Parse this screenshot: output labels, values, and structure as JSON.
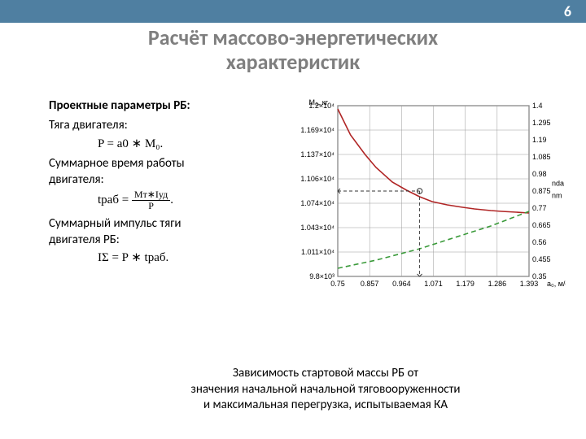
{
  "page_number": "6",
  "title_line1": "Расчёт массово-энергетических",
  "title_line2": "характеристик",
  "text": {
    "subhead": "Проектные параметры РБ:",
    "line1": "Тяга двигателя:",
    "formula1": "P = a0 ∗ M₀.",
    "line2a": "Суммарное время работы",
    "line2b": "двигателя:",
    "formula2_num": "Mт∗Iуд",
    "formula2_den": "P",
    "formula2_lhs": "tраб = ",
    "line3a": "Суммарный импульс тяги",
    "line3b": "двигателя РБ:",
    "formula3": "IΣ = P ∗ tраб."
  },
  "caption_line1": "Зависимость стартовой массы РБ от",
  "caption_line2": "значения начальной начальной тяговооруженности",
  "caption_line3": "и максимальная перегрузка, испытываемая КА",
  "chart": {
    "type": "line",
    "x_axis": {
      "label": "a0, м/с²",
      "min": 0.75,
      "max": 1.5,
      "ticks": [
        "0.75",
        "0.857",
        "0.964",
        "1.071",
        "1.179",
        "1.286",
        "1.393"
      ]
    },
    "y_left": {
      "label": "M₀, кг",
      "ticks": [
        "9.8×10³",
        "1.011×10⁴",
        "1.043×10⁴",
        "1.074×10⁴",
        "1.106×10⁴",
        "1.137×10⁴",
        "1.169×10⁴",
        "1.2×10⁴"
      ]
    },
    "y_right": {
      "ticks": [
        "0.35",
        "0.455",
        "0.56",
        "0.665",
        "0.77",
        "0.875",
        "0.98",
        "1.085",
        "1.19",
        "1.295",
        "1.4"
      ]
    },
    "right_labels": [
      "nda",
      "nm"
    ],
    "series": [
      {
        "name": "red-curve",
        "color": "#b02525",
        "dash": "none",
        "points": [
          [
            0.75,
            1.38
          ],
          [
            0.8,
            1.22
          ],
          [
            0.857,
            1.1
          ],
          [
            0.9,
            1.02
          ],
          [
            0.964,
            0.93
          ],
          [
            1.02,
            0.88
          ],
          [
            1.071,
            0.84
          ],
          [
            1.12,
            0.81
          ],
          [
            1.179,
            0.79
          ],
          [
            1.24,
            0.775
          ],
          [
            1.286,
            0.765
          ],
          [
            1.35,
            0.755
          ],
          [
            1.393,
            0.75
          ],
          [
            1.45,
            0.745
          ],
          [
            1.5,
            0.74
          ]
        ]
      },
      {
        "name": "green-dash",
        "color": "#3a9a3a",
        "dash": "6 4",
        "points": [
          [
            0.75,
            0.4
          ],
          [
            0.9,
            0.45
          ],
          [
            1.071,
            0.52
          ],
          [
            1.2,
            0.585
          ],
          [
            1.35,
            0.66
          ],
          [
            1.5,
            0.75
          ]
        ]
      }
    ],
    "marker": {
      "x": 1.071,
      "y_right_value": 0.875
    },
    "grid_color": "#9a9a9a",
    "background": "#ffffff"
  }
}
